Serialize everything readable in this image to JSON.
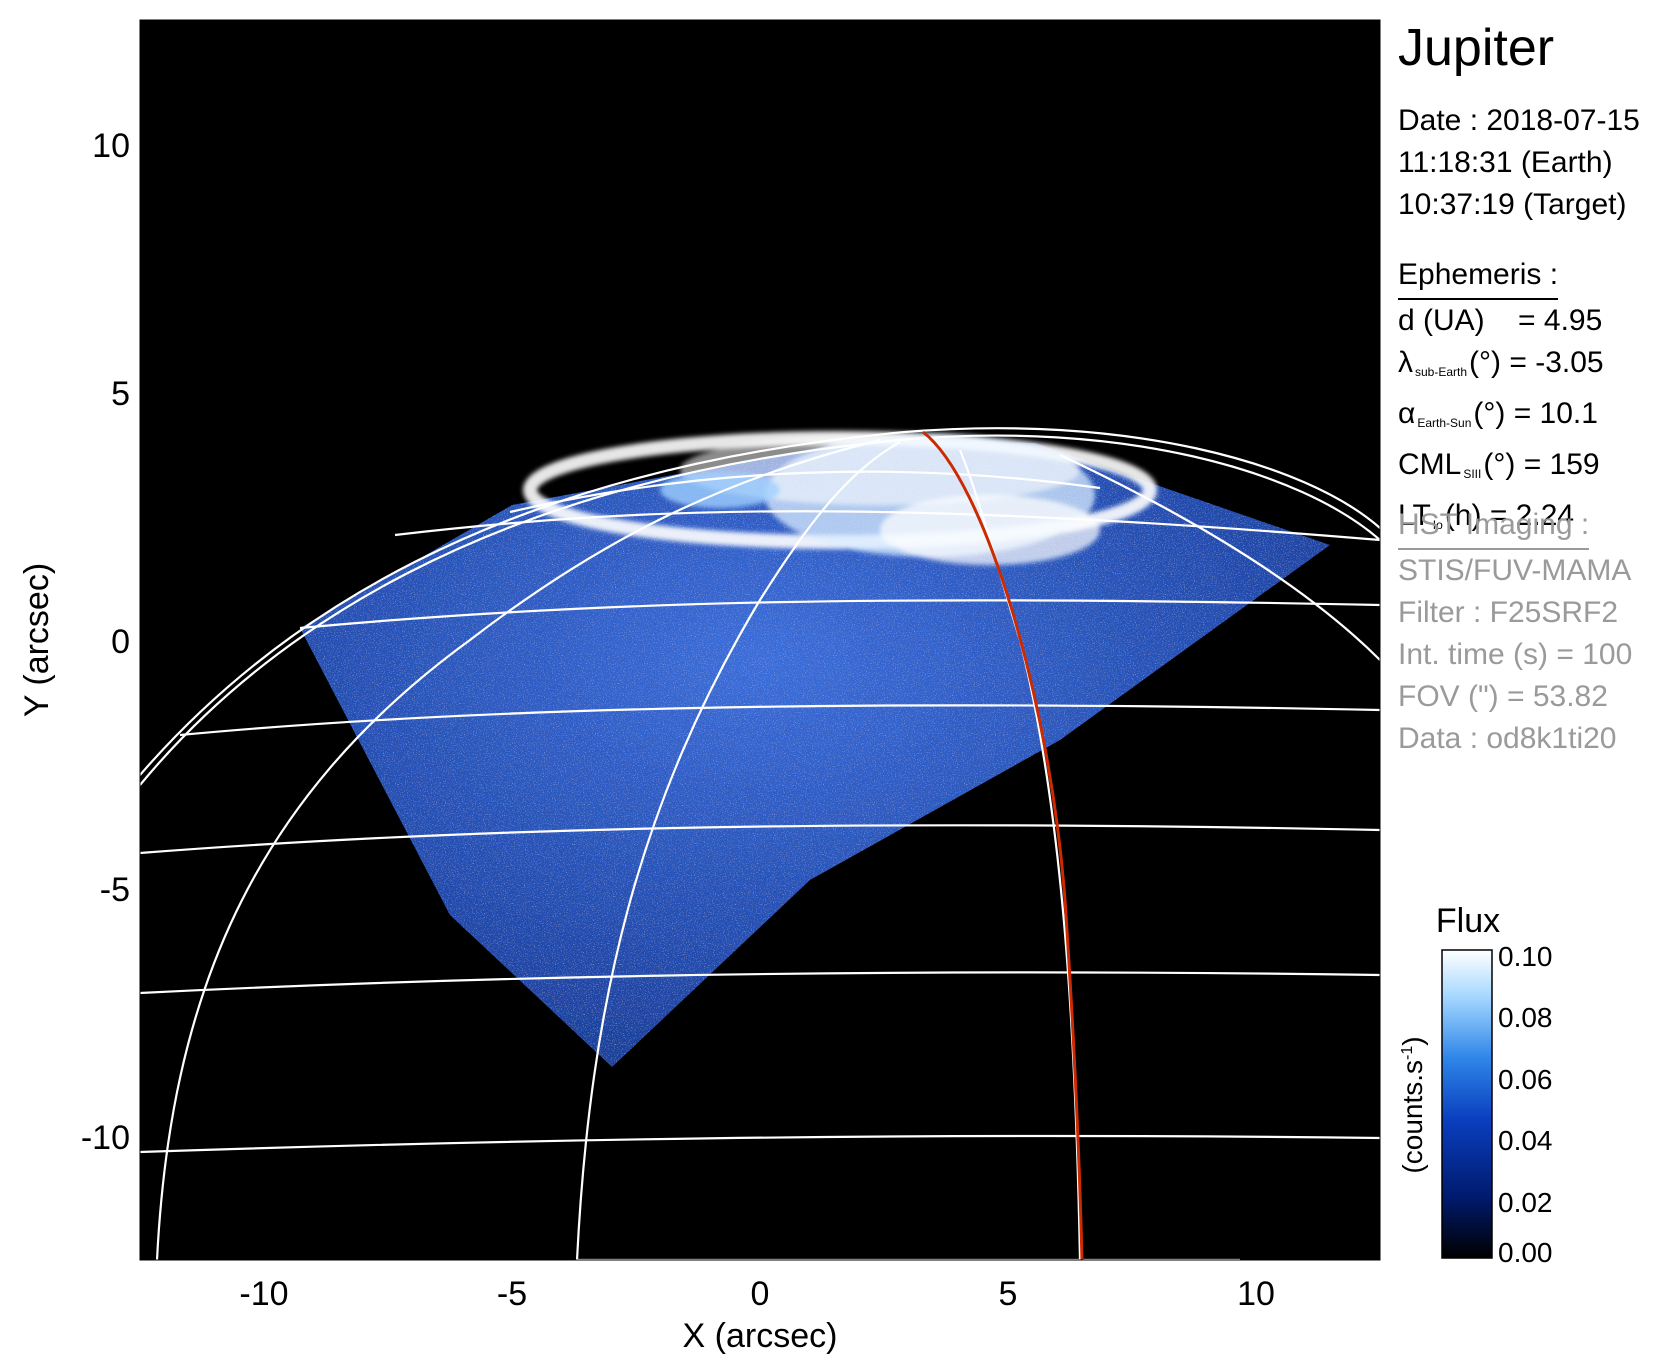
{
  "planet": "Jupiter",
  "observation": {
    "date_line": "Date : 2018-07-15",
    "earth_time": "11:18:31 (Earth)",
    "target_time": "10:37:19 (Target)"
  },
  "ephemeris": {
    "heading": "Ephemeris :",
    "distance": {
      "label": "d (UA)",
      "value": "= 4.95"
    },
    "latitude": {
      "symbol": "λ",
      "sub": "sub-Earth",
      "unit": "(°)",
      "value": "= -3.05"
    },
    "phase": {
      "symbol": "α",
      "sub": "Earth-Sun",
      "unit": "(°)",
      "value": "= 10.1"
    },
    "cml": {
      "symbol": "CML",
      "sub": "SIII",
      "unit": "(°)",
      "value": "= 159"
    },
    "lt": {
      "symbol": "LT",
      "sub": "Io",
      "unit": "(h)",
      "value": "= 2.24"
    }
  },
  "hst": {
    "heading": "HST Imaging :",
    "instrument": "STIS/FUV-MAMA",
    "filter": "Filter : F25SRF2",
    "int_time": "Int. time (s) = 100",
    "fov": "FOV (\") = 53.82",
    "data_id": "Data : od8k1ti20"
  },
  "axes": {
    "xlabel": "X (arcsec)",
    "ylabel": "Y (arcsec)",
    "xlim": [
      -12.5,
      12.5
    ],
    "ylim": [
      -12.5,
      12.5
    ],
    "xticks": [
      -10,
      -5,
      0,
      5,
      10
    ],
    "yticks": [
      10,
      5,
      0,
      -5,
      -10
    ],
    "xtick_labels": [
      "-10",
      "-5",
      "0",
      "5",
      "10"
    ],
    "ytick_labels": [
      "10",
      "5",
      "0",
      "-5",
      "-10"
    ]
  },
  "colorbar": {
    "title": "Flux",
    "label": "(counts.s",
    "label_sup": "-1",
    "label_end": ")",
    "min": 0,
    "max": 0.1,
    "ticks": [
      "0.10",
      "0.08",
      "0.06",
      "0.04",
      "0.02",
      "0.00"
    ],
    "colors": [
      "#000000",
      "#001a6e",
      "#0a3fbf",
      "#2f86e8",
      "#a6d8ff",
      "#ffffff"
    ]
  },
  "colors": {
    "background": "#000000",
    "grid": "#ffffff",
    "reference_meridian": "#cc2a00",
    "aurora": "#ffffff",
    "disk_emission": "#2e5fd4",
    "secondary_text": "#9a9a9a"
  }
}
